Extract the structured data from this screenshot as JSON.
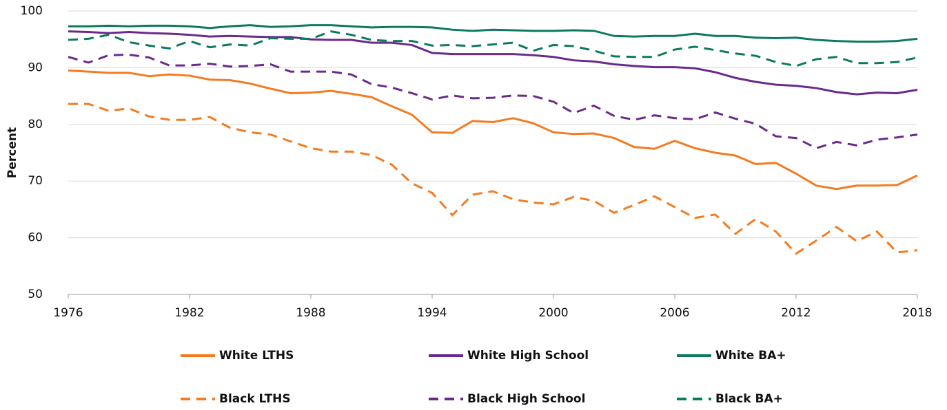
{
  "chart_data": {
    "type": "line",
    "y_label": "Percent",
    "x": [
      1976,
      1977,
      1978,
      1979,
      1980,
      1981,
      1982,
      1983,
      1984,
      1985,
      1986,
      1987,
      1988,
      1989,
      1990,
      1991,
      1992,
      1993,
      1994,
      1995,
      1996,
      1997,
      1998,
      1999,
      2000,
      2001,
      2002,
      2003,
      2004,
      2005,
      2006,
      2007,
      2008,
      2009,
      2010,
      2011,
      2012,
      2013,
      2014,
      2015,
      2016,
      2017,
      2018
    ],
    "xlim": [
      1976,
      2018
    ],
    "xticks": [
      1976,
      1982,
      1988,
      1994,
      2000,
      2006,
      2012,
      2018
    ],
    "ylim": [
      50,
      100
    ],
    "yticks": [
      50,
      60,
      70,
      80,
      90,
      100
    ],
    "grid": true,
    "legend": "bottom",
    "series": [
      {
        "name": "White LTHS",
        "color": "#f47b20",
        "dash": false,
        "values": [
          89.5,
          89.3,
          89.1,
          89.1,
          88.5,
          88.8,
          88.6,
          87.9,
          87.8,
          87.2,
          86.3,
          85.5,
          85.6,
          85.9,
          85.4,
          84.8,
          83.2,
          81.7,
          78.6,
          78.5,
          80.6,
          80.4,
          81.1,
          80.2,
          78.6,
          78.3,
          78.4,
          77.6,
          76.0,
          75.7,
          77.1,
          75.8,
          75.0,
          74.5,
          73.0,
          73.2,
          71.3,
          69.2,
          68.6,
          69.2,
          69.2,
          69.3,
          71.0
        ]
      },
      {
        "name": "White High School",
        "color": "#6a2a8c",
        "dash": false,
        "values": [
          96.4,
          96.3,
          96.1,
          96.3,
          96.1,
          96.0,
          95.8,
          95.5,
          95.6,
          95.5,
          95.4,
          95.4,
          95.0,
          94.9,
          94.9,
          94.4,
          94.4,
          94.0,
          92.6,
          92.4,
          92.4,
          92.4,
          92.4,
          92.2,
          91.9,
          91.3,
          91.1,
          90.6,
          90.3,
          90.1,
          90.1,
          89.9,
          89.2,
          88.2,
          87.5,
          87.0,
          86.8,
          86.4,
          85.7,
          85.3,
          85.6,
          85.5,
          86.1
        ]
      },
      {
        "name": "White BA+",
        "color": "#0b7a60",
        "dash": false,
        "values": [
          97.3,
          97.3,
          97.4,
          97.3,
          97.4,
          97.4,
          97.3,
          97.0,
          97.3,
          97.5,
          97.2,
          97.3,
          97.5,
          97.5,
          97.3,
          97.1,
          97.2,
          97.2,
          97.1,
          96.7,
          96.5,
          96.7,
          96.6,
          96.5,
          96.5,
          96.6,
          96.5,
          95.6,
          95.5,
          95.6,
          95.6,
          96.0,
          95.6,
          95.6,
          95.3,
          95.2,
          95.3,
          94.9,
          94.7,
          94.6,
          94.6,
          94.7,
          95.1
        ]
      },
      {
        "name": "Black LTHS",
        "color": "#f47b20",
        "dash": true,
        "values": [
          83.6,
          83.6,
          82.4,
          82.8,
          81.4,
          80.8,
          80.8,
          81.3,
          79.4,
          78.6,
          78.2,
          77.0,
          75.8,
          75.2,
          75.2,
          74.6,
          72.9,
          69.6,
          67.9,
          64.0,
          67.6,
          68.2,
          66.8,
          66.2,
          65.9,
          67.2,
          66.5,
          64.4,
          65.8,
          67.3,
          65.4,
          63.5,
          64.1,
          60.7,
          63.3,
          61.1,
          57.2,
          59.5,
          61.9,
          59.4,
          61.1,
          57.4,
          57.8
        ]
      },
      {
        "name": "Black High School",
        "color": "#6a2a8c",
        "dash": true,
        "values": [
          91.9,
          90.9,
          92.2,
          92.3,
          91.8,
          90.4,
          90.4,
          90.7,
          90.2,
          90.3,
          90.6,
          89.3,
          89.3,
          89.3,
          88.8,
          87.1,
          86.5,
          85.5,
          84.4,
          85.1,
          84.6,
          84.7,
          85.1,
          85.0,
          84.0,
          82.0,
          83.3,
          81.5,
          80.8,
          81.6,
          81.1,
          80.9,
          82.1,
          81.0,
          80.1,
          77.9,
          77.6,
          75.8,
          76.9,
          76.3,
          77.3,
          77.7,
          78.2
        ]
      },
      {
        "name": "Black BA+",
        "color": "#0b7a60",
        "dash": true,
        "values": [
          94.9,
          95.1,
          95.8,
          94.5,
          93.9,
          93.4,
          94.7,
          93.6,
          94.1,
          93.9,
          95.2,
          95.1,
          95.1,
          96.4,
          95.8,
          94.9,
          94.7,
          94.7,
          93.9,
          94.0,
          93.8,
          94.1,
          94.4,
          93.0,
          94.0,
          93.8,
          93.0,
          92.0,
          91.9,
          91.9,
          93.2,
          93.7,
          93.1,
          92.5,
          92.1,
          91.0,
          90.3,
          91.5,
          91.9,
          90.8,
          90.8,
          91.0,
          91.8
        ]
      }
    ]
  }
}
